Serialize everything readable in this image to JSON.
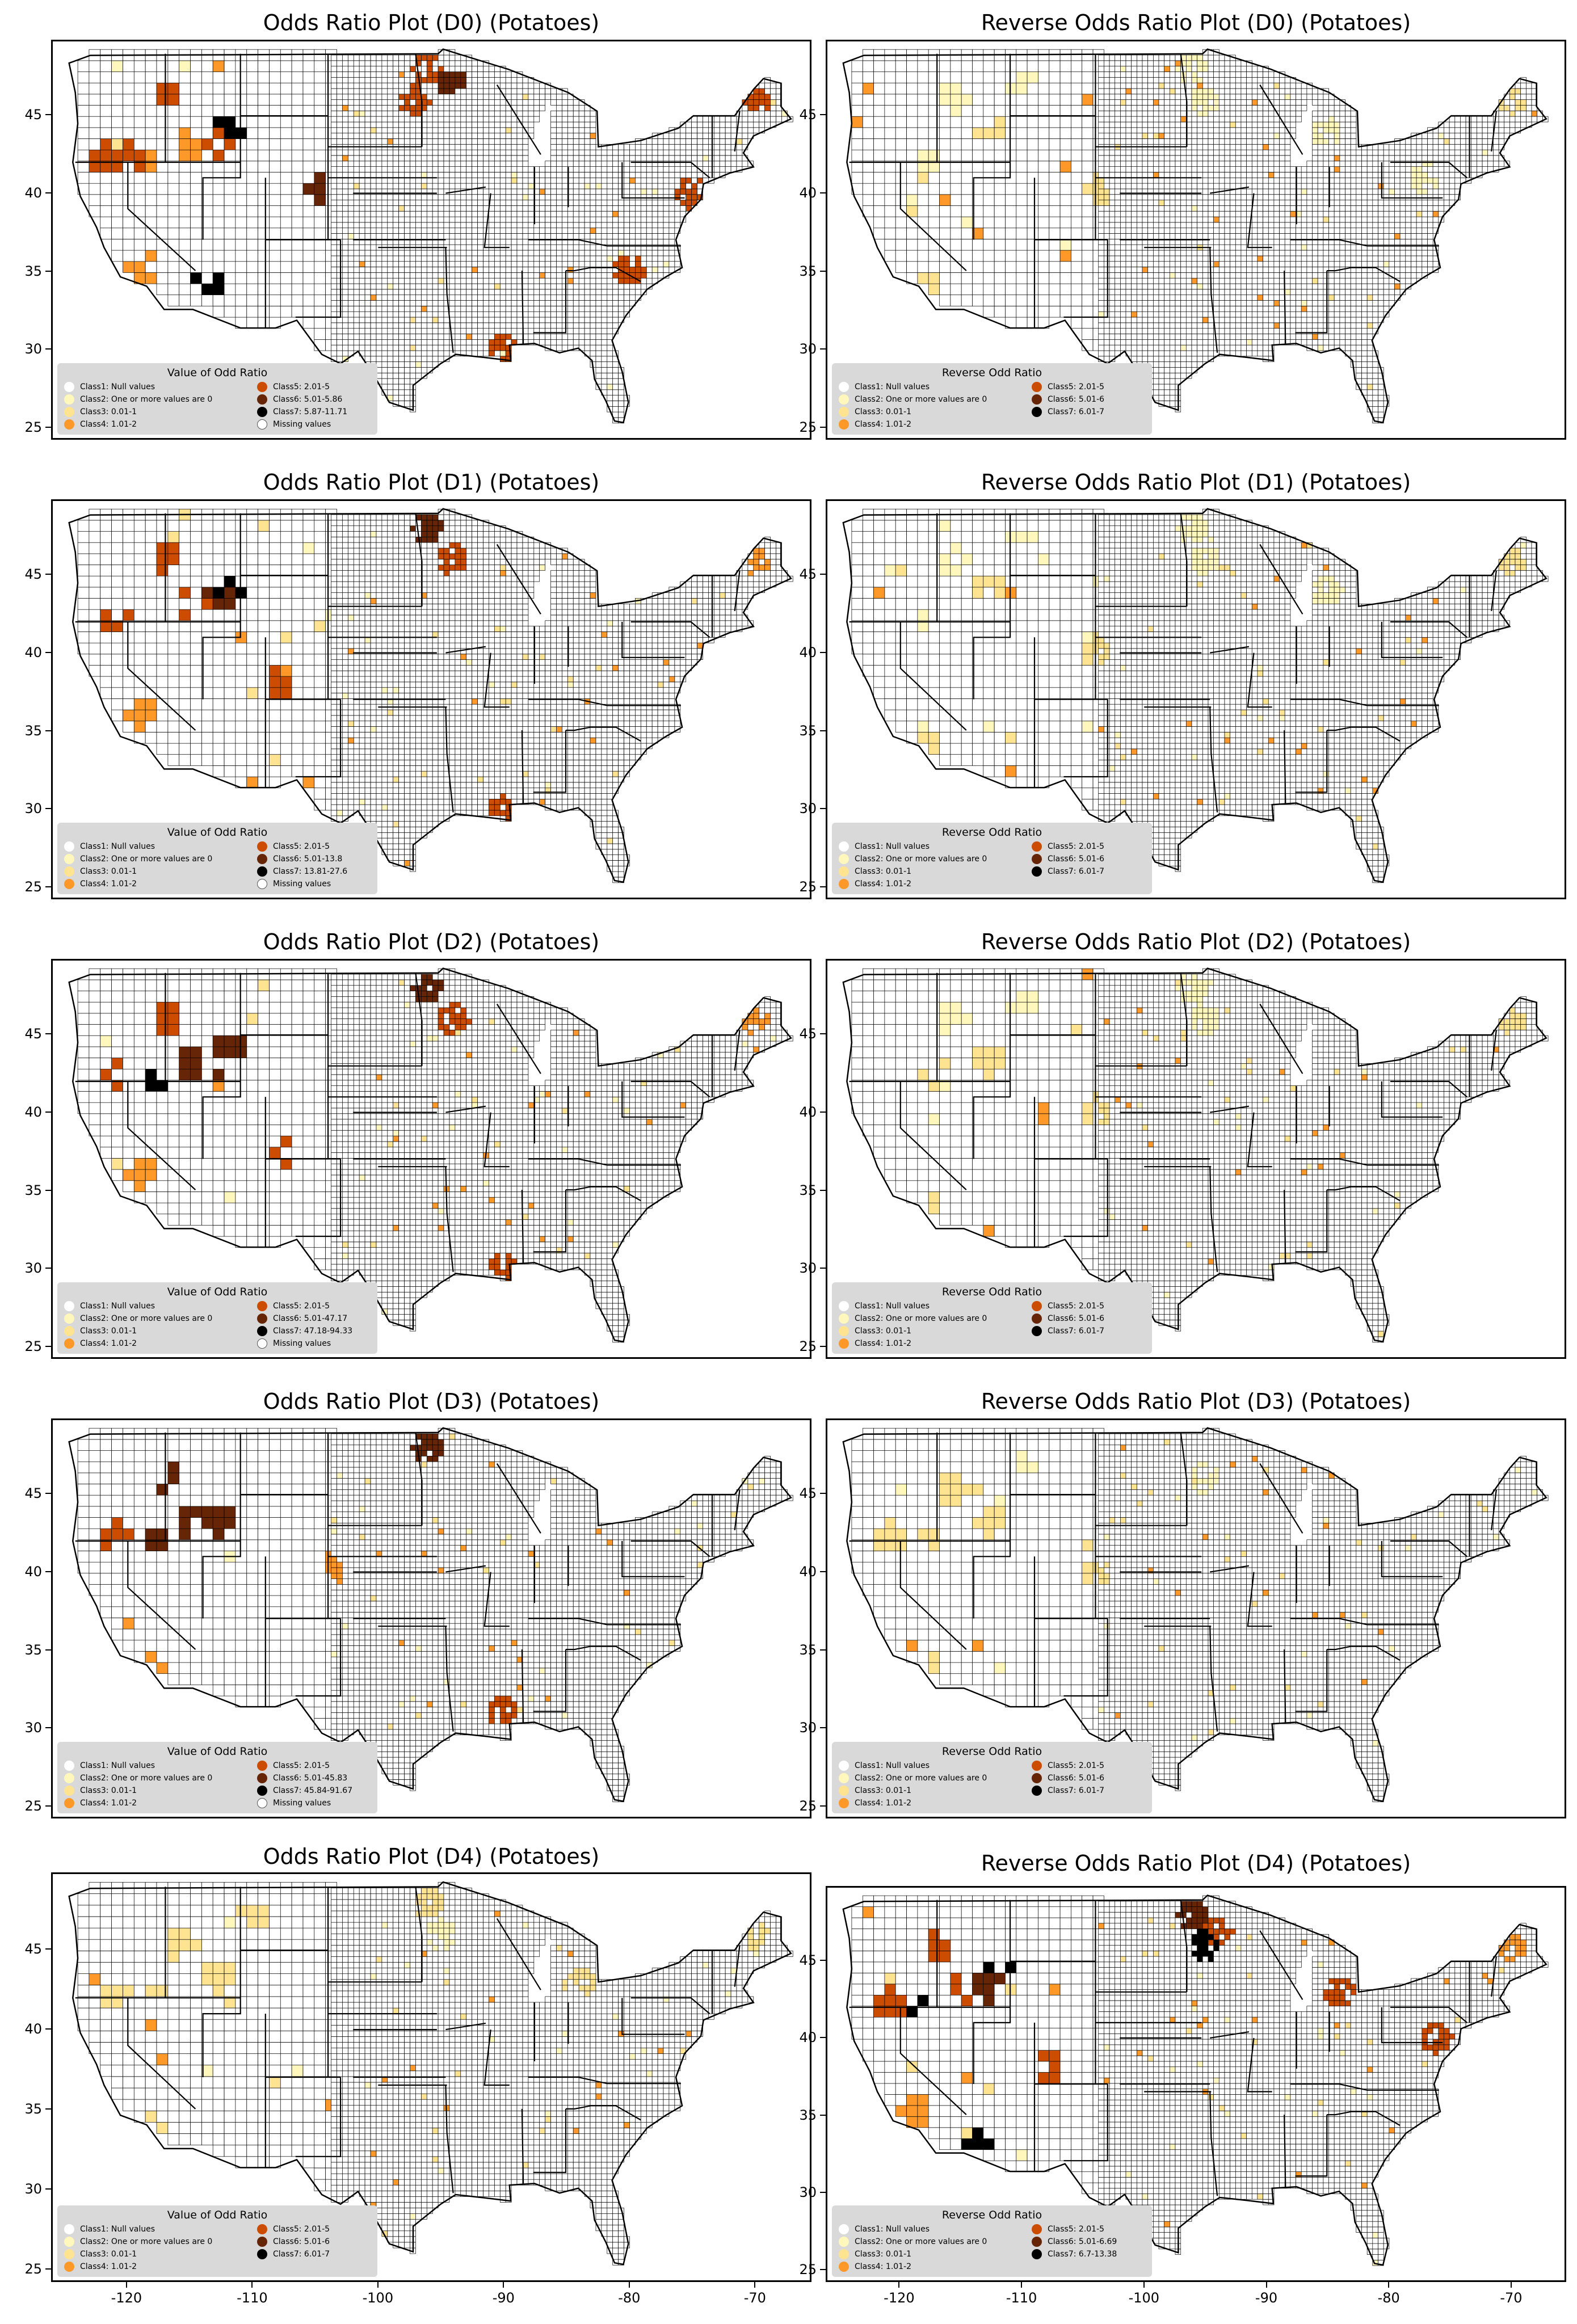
{
  "panels": [
    {
      "title": "Odds Ratio Plot (D0) (Potatoes)",
      "legend_title": "Value of Odd Ratio",
      "classes": [
        "Class1: Null values",
        "Class2: One or more values are 0",
        "Class3: 0.01-1",
        "Class4: 1.01-2",
        "Class5: 2.01-5",
        "Class6: 5.01-5.86",
        "Class7: 5.87-11.71",
        "Missing values"
      ]
    },
    {
      "title": "Reverse Odds Ratio Plot (D0) (Potatoes)",
      "legend_title": "Reverse Odd Ratio",
      "classes": [
        "Class1: Null values",
        "Class2: One or more values are 0",
        "Class3: 0.01-1",
        "Class4: 1.01-2",
        "Class5: 2.01-5",
        "Class6: 5.01-6",
        "Class7: 6.01-7"
      ]
    },
    {
      "title": "Odds Ratio Plot (D1) (Potatoes)",
      "legend_title": "Value of Odd Ratio",
      "classes": [
        "Class1: Null values",
        "Class2: One or more values are 0",
        "Class3: 0.01-1",
        "Class4: 1.01-2",
        "Class5: 2.01-5",
        "Class6: 5.01-13.8",
        "Class7: 13.81-27.6",
        "Missing values"
      ]
    },
    {
      "title": "Reverse Odds Ratio Plot (D1) (Potatoes)",
      "legend_title": "Reverse Odd Ratio",
      "classes": [
        "Class1: Null values",
        "Class2: One or more values are 0",
        "Class3: 0.01-1",
        "Class4: 1.01-2",
        "Class5: 2.01-5",
        "Class6: 5.01-6",
        "Class7: 6.01-7"
      ]
    },
    {
      "title": "Odds Ratio Plot (D2) (Potatoes)",
      "legend_title": "Value of Odd Ratio",
      "classes": [
        "Class1: Null values",
        "Class2: One or more values are 0",
        "Class3: 0.01-1",
        "Class4: 1.01-2",
        "Class5: 2.01-5",
        "Class6: 5.01-47.17",
        "Class7: 47.18-94.33",
        "Missing values"
      ]
    },
    {
      "title": "Reverse Odds Ratio Plot (D2) (Potatoes)",
      "legend_title": "Reverse Odd Ratio",
      "classes": [
        "Class1: Null values",
        "Class2: One or more values are 0",
        "Class3: 0.01-1",
        "Class4: 1.01-2",
        "Class5: 2.01-5",
        "Class6: 5.01-6",
        "Class7: 6.01-7"
      ]
    },
    {
      "title": "Odds Ratio Plot (D3) (Potatoes)",
      "legend_title": "Value of Odd Ratio",
      "classes": [
        "Class1: Null values",
        "Class2: One or more values are 0",
        "Class3: 0.01-1",
        "Class4: 1.01-2",
        "Class5: 2.01-5",
        "Class6: 5.01-45.83",
        "Class7: 45.84-91.67",
        "Missing values"
      ]
    },
    {
      "title": "Reverse Odds Ratio Plot (D3) (Potatoes)",
      "legend_title": "Reverse Odd Ratio",
      "classes": [
        "Class1: Null values",
        "Class2: One or more values are 0",
        "Class3: 0.01-1",
        "Class4: 1.01-2",
        "Class5: 2.01-5",
        "Class6: 5.01-6",
        "Class7: 6.01-7"
      ]
    },
    {
      "title": "Odds Ratio Plot (D4) (Potatoes)",
      "legend_title": "Value of Odd Ratio",
      "classes": [
        "Class1: Null values",
        "Class2: One or more values are 0",
        "Class3: 0.01-1",
        "Class4: 1.01-2",
        "Class5: 2.01-5",
        "Class6: 5.01-6",
        "Class7: 6.01-7"
      ]
    },
    {
      "title": "Reverse Odds Ratio Plot (D4) (Potatoes)",
      "legend_title": "Reverse Odd Ratio",
      "classes": [
        "Class1: Null values",
        "Class2: One or more values are 0",
        "Class3: 0.01-1",
        "Class4: 1.01-2",
        "Class5: 2.01-5",
        "Class6: 5.01-6.69",
        "Class7: 6.7-13.38"
      ]
    }
  ],
  "class_colors": [
    "#ffffff",
    "#fff7bc",
    "#fee391",
    "#fe9929",
    "#cc4c02",
    "#662506",
    "#000000",
    "#ffffff"
  ],
  "y_ticks": [
    "45",
    "40",
    "35",
    "30",
    "25"
  ],
  "x_ticks": [
    "-120",
    "-110",
    "-100",
    "-90",
    "-80",
    "-70"
  ]
}
